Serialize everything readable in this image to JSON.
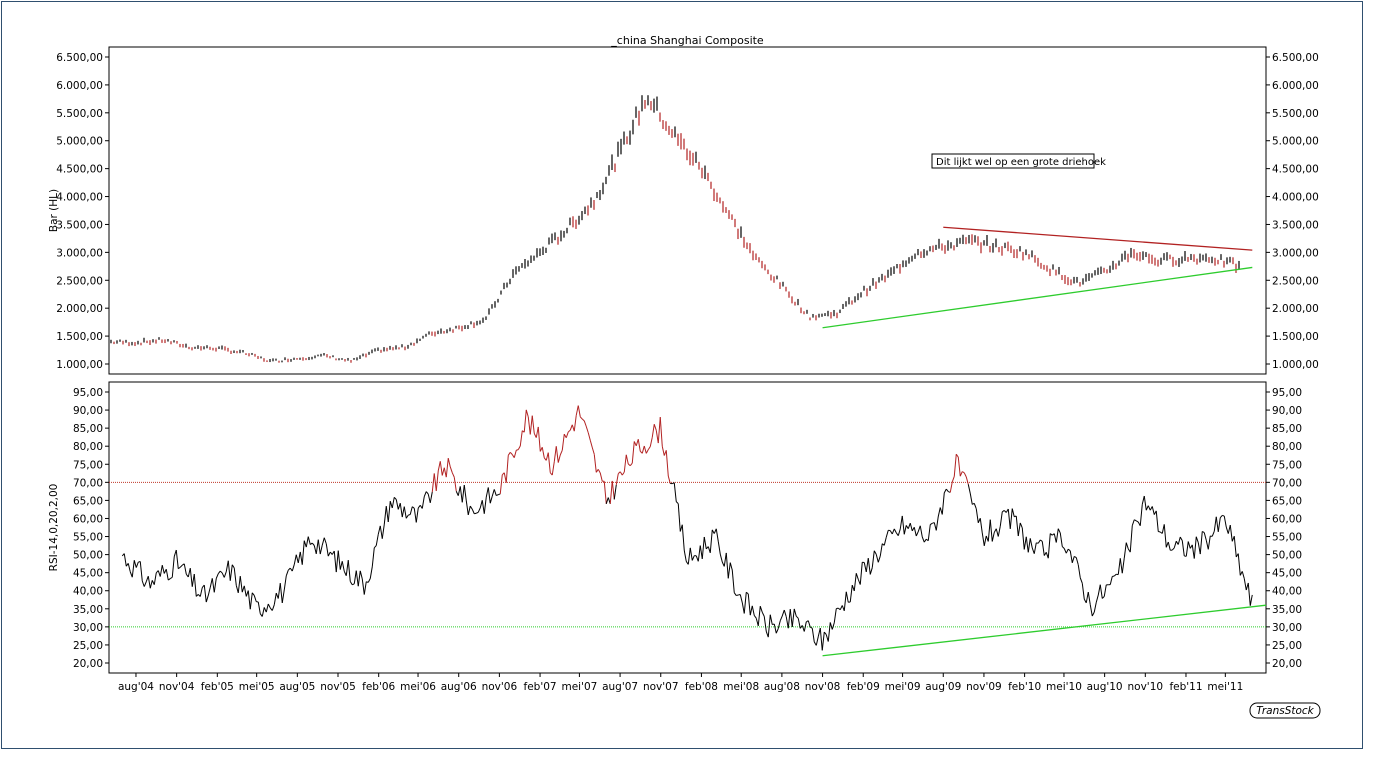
{
  "chart_data": [
    {
      "type": "bar",
      "title": "_china Shanghai Composite",
      "ylabel": "Bar (HL)",
      "ylim": [
        1000,
        6500
      ],
      "yticks": [
        "6.500,00",
        "6.000,00",
        "5.500,00",
        "5.000,00",
        "4.500,00",
        "4.000,00",
        "3.500,00",
        "3.000,00",
        "2.500,00",
        "2.000,00",
        "1.500,00",
        "1.000,00"
      ],
      "yvalues": [
        6500,
        6000,
        5500,
        5000,
        4500,
        4000,
        3500,
        3000,
        2500,
        2000,
        1500,
        1000
      ],
      "annotation": "Dit lijkt wel op een grote driehoek",
      "series": [
        {
          "x": [
            "2004-06",
            "2004-08",
            "2004-10",
            "2004-12",
            "2005-02",
            "2005-04",
            "2005-06",
            "2005-08",
            "2005-10",
            "2005-12",
            "2006-02",
            "2006-04",
            "2006-06",
            "2006-08",
            "2006-10",
            "2006-12",
            "2007-02",
            "2007-04",
            "2007-06",
            "2007-08",
            "2007-10",
            "2007-12",
            "2008-02",
            "2008-04",
            "2008-06",
            "2008-08",
            "2008-10",
            "2008-12",
            "2009-02",
            "2009-04",
            "2009-06",
            "2009-08",
            "2009-10",
            "2009-12",
            "2010-02",
            "2010-04",
            "2010-06",
            "2010-08",
            "2010-10",
            "2010-12",
            "2011-02",
            "2011-04",
            "2011-06"
          ],
          "values": [
            1400,
            1380,
            1430,
            1300,
            1280,
            1200,
            1050,
            1100,
            1150,
            1050,
            1250,
            1300,
            1550,
            1650,
            1800,
            2600,
            3000,
            3400,
            3900,
            4800,
            5800,
            5100,
            4500,
            3700,
            2900,
            2400,
            1850,
            1900,
            2300,
            2600,
            3000,
            3100,
            3200,
            3100,
            3000,
            2700,
            2450,
            2650,
            3000,
            2850,
            2900,
            2900,
            2750
          ]
        }
      ],
      "trendlines": [
        {
          "name": "resistance",
          "color": "#b22222",
          "from": {
            "x": "2009-08",
            "y": 3450
          },
          "to": {
            "x": "2011-07",
            "y": 3040
          }
        },
        {
          "name": "support",
          "color": "#2ecc2e",
          "from": {
            "x": "2008-11",
            "y": 1650
          },
          "to": {
            "x": "2011-07",
            "y": 2730
          }
        }
      ]
    },
    {
      "type": "line",
      "ylabel": "RSI-14,0,20,2,00",
      "ylim": [
        20,
        95
      ],
      "yticks": [
        "95,00",
        "90,00",
        "85,00",
        "80,00",
        "75,00",
        "70,00",
        "65,00",
        "60,00",
        "55,00",
        "50,00",
        "45,00",
        "40,00",
        "35,00",
        "30,00",
        "25,00",
        "20,00"
      ],
      "yvalues": [
        95,
        90,
        85,
        80,
        75,
        70,
        65,
        60,
        55,
        50,
        45,
        40,
        35,
        30,
        25,
        20
      ],
      "reference_lines": [
        {
          "y": 70,
          "color": "#c0392b"
        },
        {
          "y": 30,
          "color": "#2ecc2e"
        }
      ],
      "series": [
        {
          "x": [
            "2004-07",
            "2004-09",
            "2004-11",
            "2005-01",
            "2005-03",
            "2005-05",
            "2005-07",
            "2005-09",
            "2005-11",
            "2006-01",
            "2006-03",
            "2006-05",
            "2006-07",
            "2006-09",
            "2006-11",
            "2007-01",
            "2007-03",
            "2007-05",
            "2007-07",
            "2007-09",
            "2007-11",
            "2008-01",
            "2008-03",
            "2008-05",
            "2008-07",
            "2008-09",
            "2008-11",
            "2009-01",
            "2009-03",
            "2009-05",
            "2009-07",
            "2009-09",
            "2009-11",
            "2010-01",
            "2010-03",
            "2010-05",
            "2010-07",
            "2010-09",
            "2010-11",
            "2011-01",
            "2011-03",
            "2011-05",
            "2011-07"
          ],
          "values": [
            50,
            42,
            48,
            38,
            46,
            35,
            40,
            55,
            48,
            42,
            65,
            60,
            75,
            62,
            68,
            88,
            75,
            90,
            65,
            78,
            85,
            48,
            55,
            38,
            30,
            32,
            26,
            40,
            50,
            58,
            55,
            75,
            55,
            60,
            50,
            55,
            36,
            44,
            65,
            52,
            52,
            60,
            36
          ]
        }
      ],
      "trendlines": [
        {
          "name": "rsi-support",
          "color": "#2ecc2e",
          "from": {
            "x": "2008-11",
            "y": 22
          },
          "to": {
            "x": "2011-07",
            "y": 36
          }
        }
      ]
    }
  ],
  "x_axis": {
    "ticks": [
      "aug'04",
      "nov'04",
      "feb'05",
      "mei'05",
      "aug'05",
      "nov'05",
      "feb'06",
      "mei'06",
      "aug'06",
      "nov'06",
      "feb'07",
      "mei'07",
      "aug'07",
      "nov'07",
      "feb'08",
      "mei'08",
      "aug'08",
      "nov'08",
      "feb'09",
      "mei'09",
      "aug'09",
      "nov'09",
      "feb'10",
      "mei'10",
      "aug'10",
      "nov'10",
      "feb'11",
      "mei'11"
    ],
    "dates": [
      "2004-08",
      "2004-11",
      "2005-02",
      "2005-05",
      "2005-08",
      "2005-11",
      "2006-02",
      "2006-05",
      "2006-08",
      "2006-11",
      "2007-02",
      "2007-05",
      "2007-08",
      "2007-11",
      "2008-02",
      "2008-05",
      "2008-08",
      "2008-11",
      "2009-02",
      "2009-05",
      "2009-08",
      "2009-11",
      "2010-02",
      "2010-05",
      "2010-08",
      "2010-11",
      "2011-02",
      "2011-05"
    ]
  },
  "badge": "TransStock",
  "colors": {
    "frame": "#2f4f6f",
    "bar_up": "#000000",
    "bar_down": "#b22222",
    "rsi_line": "#000000",
    "overbought": "#c0392b",
    "oversold": "#2ecc2e"
  }
}
